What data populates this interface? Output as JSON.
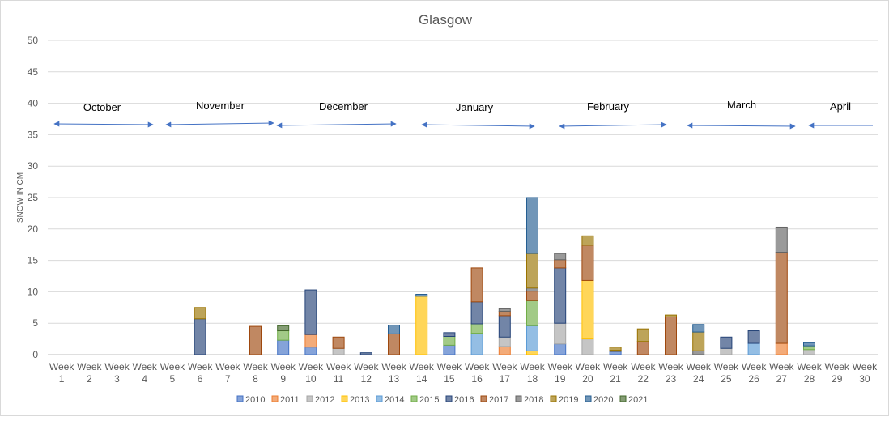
{
  "chart_data": {
    "type": "bar",
    "stacked": true,
    "title": "Glasgow",
    "xlabel": "",
    "ylabel": "SNOW IN CM",
    "ylim": [
      0,
      50
    ],
    "yticks": [
      0,
      5,
      10,
      15,
      20,
      25,
      30,
      35,
      40,
      45,
      50
    ],
    "grid": true,
    "legend_position": "bottom",
    "categories": [
      "Week 1",
      "Week 2",
      "Week 3",
      "Week 4",
      "Week 5",
      "Week 6",
      "Week 7",
      "Week 8",
      "Week 9",
      "Week 10",
      "Week 11",
      "Week 12",
      "Week 13",
      "Week 14",
      "Week 15",
      "Week 16",
      "Week 17",
      "Week 18",
      "Week 19",
      "Week 20",
      "Week 21",
      "Week 22",
      "Week 23",
      "Week 24",
      "Week 25",
      "Week 26",
      "Week 27",
      "Week 28",
      "Week 29",
      "Week 30"
    ],
    "series": [
      {
        "name": "2010",
        "color": "#4472C4",
        "values": [
          0,
          0,
          0,
          0,
          0,
          0,
          0,
          0,
          2.3,
          1.2,
          0,
          0,
          0,
          0,
          1.5,
          0,
          0,
          0,
          1.7,
          0,
          0.5,
          0,
          0,
          0,
          0,
          0,
          0,
          0,
          0,
          0
        ]
      },
      {
        "name": "2011",
        "color": "#ED7D31",
        "values": [
          0,
          0,
          0,
          0,
          0,
          0,
          0,
          0,
          0,
          2.0,
          0,
          0,
          0,
          0,
          0,
          0,
          1.3,
          0,
          0,
          0,
          0,
          0,
          0,
          0,
          0,
          0,
          1.8,
          0,
          0,
          0
        ]
      },
      {
        "name": "2012",
        "color": "#A5A5A5",
        "values": [
          0,
          0,
          0,
          0,
          0,
          0,
          0,
          0,
          0,
          0,
          1.0,
          0,
          0,
          0,
          0,
          0,
          1.5,
          0,
          3.3,
          2.5,
          0,
          0,
          0,
          0,
          1.0,
          0,
          0,
          0.8,
          0,
          0
        ]
      },
      {
        "name": "2013",
        "color": "#FFC000",
        "values": [
          0,
          0,
          0,
          0,
          0,
          0,
          0,
          0,
          0,
          0,
          0,
          0,
          0,
          9.3,
          0,
          0,
          0,
          0.6,
          0,
          9.3,
          0,
          0,
          0,
          0,
          0,
          0,
          0,
          0,
          0,
          0
        ]
      },
      {
        "name": "2014",
        "color": "#5B9BD5",
        "values": [
          0,
          0,
          0,
          0,
          0,
          0,
          0,
          0,
          0,
          0,
          0,
          0,
          0,
          0,
          0,
          3.4,
          0,
          4.0,
          0,
          0,
          0,
          0,
          0,
          0,
          0,
          1.8,
          0,
          0,
          0,
          0
        ]
      },
      {
        "name": "2015",
        "color": "#70AD47",
        "values": [
          0,
          0,
          0,
          0,
          0,
          0,
          0,
          0,
          1.5,
          0,
          0,
          0,
          0,
          0,
          1.4,
          1.5,
          0,
          4.0,
          0,
          0,
          0,
          0,
          0,
          0,
          0,
          0,
          0,
          0.6,
          0,
          0
        ]
      },
      {
        "name": "2016",
        "color": "#264478",
        "values": [
          0,
          0,
          0,
          0,
          0,
          5.7,
          0,
          0,
          0,
          7.1,
          0,
          0.3,
          0,
          0,
          0.6,
          3.5,
          3.4,
          0,
          8.8,
          0,
          0,
          0,
          0,
          0,
          1.8,
          2.0,
          0,
          0,
          0,
          0
        ]
      },
      {
        "name": "2017",
        "color": "#9E480E",
        "values": [
          0,
          0,
          0,
          0,
          0,
          0,
          0,
          4.5,
          0,
          0,
          1.8,
          0,
          3.3,
          0,
          0,
          5.4,
          0.7,
          1.5,
          1.3,
          5.6,
          0,
          2.1,
          6.0,
          0,
          0,
          0,
          14.5,
          0,
          0,
          0
        ]
      },
      {
        "name": "2018",
        "color": "#636363",
        "values": [
          0,
          0,
          0,
          0,
          0,
          0,
          0,
          0,
          0,
          0,
          0,
          0,
          0,
          0,
          0,
          0,
          0.4,
          0.5,
          1.0,
          0,
          0.2,
          0,
          0,
          0.6,
          0,
          0,
          4.0,
          0,
          0,
          0
        ]
      },
      {
        "name": "2019",
        "color": "#997300",
        "values": [
          0,
          0,
          0,
          0,
          0,
          1.8,
          0,
          0,
          0,
          0,
          0,
          0,
          0,
          0,
          0,
          0,
          0,
          5.5,
          0,
          1.5,
          0.5,
          2.0,
          0.3,
          3.0,
          0,
          0,
          0,
          0,
          0,
          0
        ]
      },
      {
        "name": "2020",
        "color": "#255E91",
        "values": [
          0,
          0,
          0,
          0,
          0,
          0,
          0,
          0,
          0,
          0,
          0,
          0,
          1.4,
          0.3,
          0,
          0,
          0,
          8.9,
          0,
          0,
          0,
          0,
          0,
          1.2,
          0,
          0,
          0,
          0.5,
          0,
          0
        ]
      },
      {
        "name": "2021",
        "color": "#43682B",
        "values": [
          0,
          0,
          0,
          0,
          0,
          0,
          0,
          0,
          0.8,
          0,
          0,
          0,
          0,
          0,
          0,
          0,
          0,
          0,
          0,
          0,
          0,
          0,
          0,
          0,
          0,
          0,
          0,
          0,
          0,
          0
        ]
      }
    ],
    "annotations": [
      "October",
      "November",
      "December",
      "January",
      "February",
      "March",
      "April"
    ]
  }
}
